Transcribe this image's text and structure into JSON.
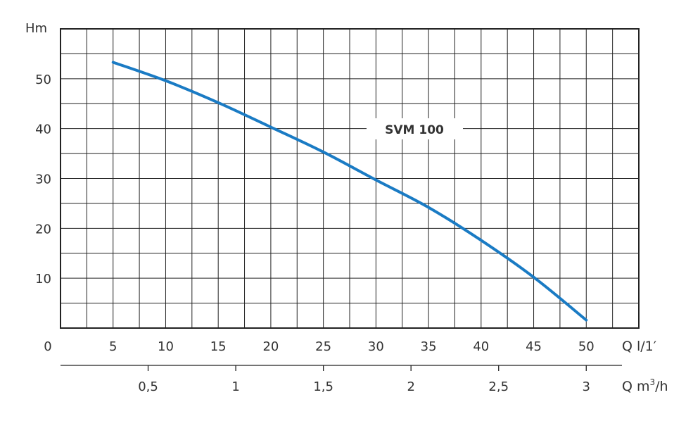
{
  "chart_data": {
    "type": "line",
    "ylabel": "Hm",
    "xlabel": "Q l/1′",
    "x2label_prefix": "Q m",
    "x2label_sup": "3",
    "x2label_suffix": "/h",
    "xlim": [
      0,
      55
    ],
    "ylim": [
      0,
      60
    ],
    "grid": true,
    "x_ticks": [
      "0",
      "5",
      "10",
      "15",
      "20",
      "25",
      "30",
      "35",
      "40",
      "45",
      "50"
    ],
    "y_ticks": [
      "10",
      "20",
      "30",
      "40",
      "50"
    ],
    "x2_ticks": [
      "0,5",
      "1",
      "1,5",
      "2",
      "2,5",
      "3"
    ],
    "x2_tick_values_lpm": [
      8.333,
      16.667,
      25,
      33.333,
      41.667,
      50
    ],
    "series": [
      {
        "name": "SVM 100",
        "color": "#1a7bc4",
        "x": [
          5,
          10,
          15,
          20,
          25,
          30,
          35,
          40,
          45,
          50
        ],
        "y": [
          53.3,
          49.6,
          45.2,
          40.3,
          35.3,
          29.7,
          24.2,
          17.6,
          10.2,
          1.6
        ]
      }
    ]
  }
}
